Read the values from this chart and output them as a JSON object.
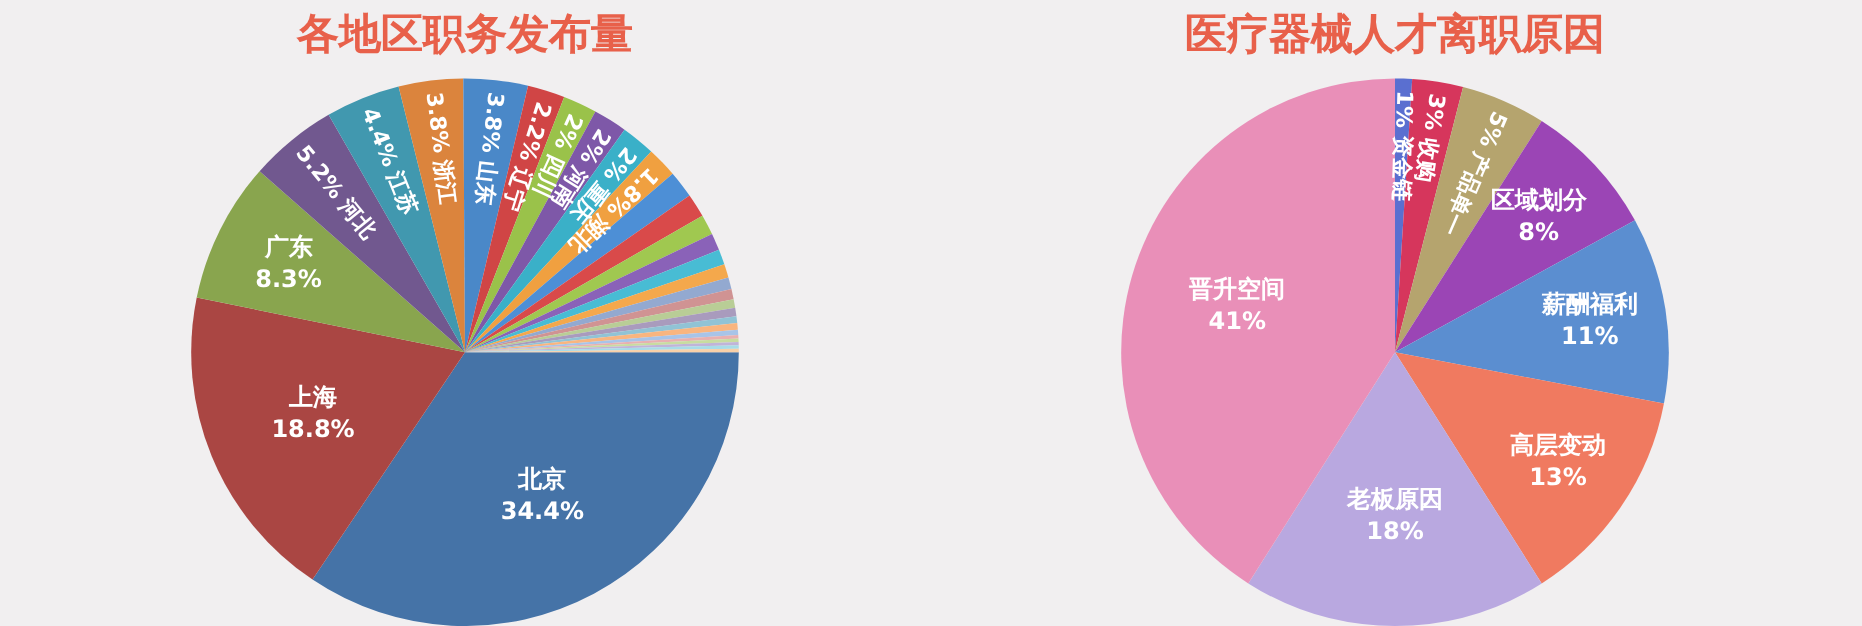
{
  "chart_data": [
    {
      "type": "pie",
      "title": "各地区职务发布量",
      "categories": [
        "北京",
        "上海",
        "广东",
        "河北",
        "江苏",
        "浙江",
        "山东",
        "辽宁",
        "四川",
        "河南",
        "重庆",
        "湖北",
        null,
        null,
        null,
        null,
        null,
        null,
        null,
        null,
        null,
        null,
        null,
        null,
        null,
        null,
        null,
        null,
        null,
        null
      ],
      "values": [
        34.4,
        18.8,
        8.3,
        5.2,
        4.4,
        3.8,
        3.8,
        2.2,
        2,
        2,
        2,
        1.8,
        1.6,
        1.4,
        1.2,
        1.0,
        0.9,
        0.8,
        0.7,
        0.6,
        0.5,
        0.5,
        0.4,
        0.4,
        0.3,
        0.2,
        0.2,
        0.2,
        0.2,
        0.2
      ],
      "value_labels": [
        "34.4%",
        "18.8%",
        "8.3%",
        "5.2%",
        "4.4%",
        "3.8%",
        "3.8%",
        "2.2%",
        "2%",
        "2%",
        "2%",
        "1.8%",
        null,
        null,
        null,
        null,
        null,
        null,
        null,
        null,
        null,
        null,
        null,
        null,
        null,
        null,
        null,
        null,
        null,
        null
      ],
      "colors": [
        "#4573a7",
        "#aa4643",
        "#89a54e",
        "#71588f",
        "#4198af",
        "#db843d",
        "#4a88c8",
        "#d04545",
        "#9ac24a",
        "#7e58a8",
        "#3ab0c8",
        "#f0a040",
        "#4d8fd6",
        "#d94a4a",
        "#a0c850",
        "#8a62b8",
        "#48bcd4",
        "#f4a84c",
        "#93a9d0",
        "#d09393",
        "#b9cd96",
        "#a99bbd",
        "#91c3d5",
        "#f9b57f",
        "#a8c4e8",
        "#e8b0b0",
        "#c8dca0",
        "#c0b4d8",
        "#a8dce8",
        "#f8d0a8"
      ],
      "legend": false
    },
    {
      "type": "pie",
      "title": "医疗器械人才离职原因",
      "categories": [
        "资金链",
        "收购",
        "产品单一",
        "区域划分",
        "薪酬福利",
        "高层变动",
        "老板原因",
        "晋升空间"
      ],
      "values": [
        1,
        3,
        5,
        8,
        11,
        13,
        18,
        41
      ],
      "value_labels": [
        "1%",
        "3%",
        "5%",
        "8%",
        "11%",
        "13%",
        "18%",
        "41%"
      ],
      "colors": [
        "#5a6fd0",
        "#d6365c",
        "#b5a46e",
        "#9b45b5",
        "#5b8ed0",
        "#f07a60",
        "#b9a8e0",
        "#e98fb8"
      ],
      "legend": false
    }
  ]
}
